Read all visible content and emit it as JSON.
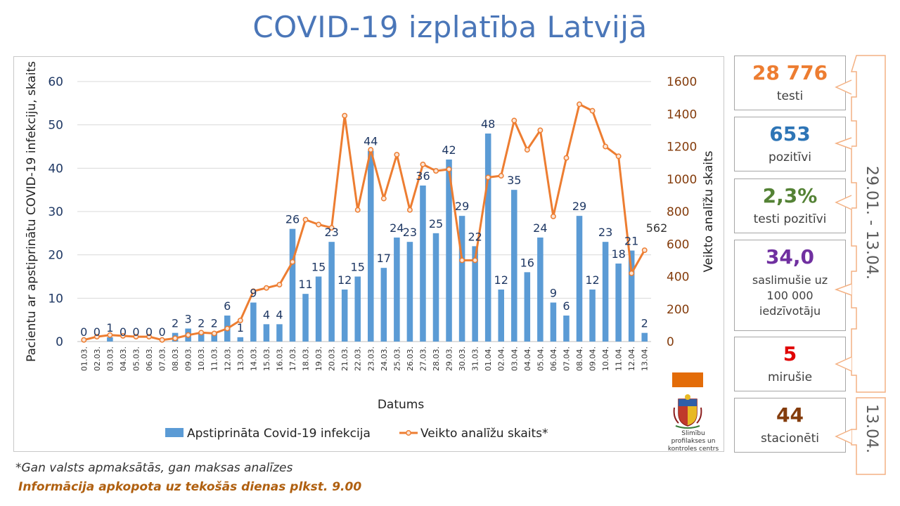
{
  "title": "COVID-19 izplatība Latvijā",
  "chart_data": {
    "type": "bar+line",
    "xlabel": "Datums",
    "ylabel_left": "Pacientu ar apstiprinātu COVID-19 infekciju, skaits",
    "ylabel_right": "Veikto analīžu skaits",
    "ylim_left": [
      0,
      60
    ],
    "yticks_left": [
      0,
      10,
      20,
      30,
      40,
      50,
      60
    ],
    "ylim_right": [
      0,
      1600
    ],
    "yticks_right": [
      0,
      200,
      400,
      600,
      800,
      1000,
      1200,
      1400,
      1600
    ],
    "grid": true,
    "legend_position": "bottom",
    "categories": [
      "01.03.",
      "02.03.",
      "03.03.",
      "04.03.",
      "05.03.",
      "06.03.",
      "07.03.",
      "08.03.",
      "09.03.",
      "10.03.",
      "11.03.",
      "12.03.",
      "13.03.",
      "14.03.",
      "15.03.",
      "16.03.",
      "17.03.",
      "18.03.",
      "19.03.",
      "20.03.",
      "21.03.",
      "22.03.",
      "23.03.",
      "24.03.",
      "25.03.",
      "26.03.",
      "27.03.",
      "28.03.",
      "29.03.",
      "30.03.",
      "31.03.",
      "01.04.",
      "02.04.",
      "03.04.",
      "04.04.",
      "05.04.",
      "06.04.",
      "07.04.",
      "08.04.",
      "09.04.",
      "10.04.",
      "11.04.",
      "12.04.",
      "13.04."
    ],
    "series": [
      {
        "name": "Apstiprināta Covid-19 infekcija",
        "type": "bar",
        "axis": "left",
        "color": "#5b9bd5",
        "values": [
          0,
          0,
          1,
          0,
          0,
          0,
          0,
          2,
          3,
          2,
          2,
          6,
          1,
          9,
          4,
          4,
          26,
          11,
          15,
          23,
          12,
          15,
          44,
          17,
          24,
          23,
          36,
          25,
          42,
          29,
          22,
          48,
          12,
          35,
          16,
          24,
          9,
          6,
          29,
          12,
          23,
          18,
          21,
          2
        ]
      },
      {
        "name": "Veikto analīžu skaits*",
        "type": "line",
        "axis": "right",
        "color": "#ed7d31",
        "values": [
          10,
          30,
          40,
          35,
          30,
          30,
          10,
          20,
          40,
          55,
          50,
          80,
          130,
          310,
          330,
          350,
          490,
          750,
          720,
          700,
          1390,
          810,
          1180,
          880,
          1150,
          810,
          1090,
          1050,
          1060,
          500,
          500,
          1010,
          1020,
          1360,
          1180,
          1300,
          770,
          1130,
          1460,
          1420,
          1200,
          1140,
          420,
          562
        ],
        "end_label": "562"
      }
    ]
  },
  "stats": [
    {
      "value": "28 776",
      "label": "testi",
      "color": "#ed7d31"
    },
    {
      "value": "653",
      "label": "pozitīvi",
      "color": "#2e75b6"
    },
    {
      "value": "2,3%",
      "label": "testi pozitīvi",
      "color": "#548235"
    },
    {
      "value": "34,0",
      "label": "saslimušie uz 100 000 iedzīvotāju",
      "color": "#7030a0"
    },
    {
      "value": "5",
      "label": "mirušie",
      "color": "#e00000"
    },
    {
      "value": "44",
      "label": "stacionēti",
      "color": "#843c0c"
    }
  ],
  "period_label": "29.01. - 13.04.",
  "date_label": "13.04.",
  "logo_caption": "Slimību profilakses un kontroles centrs",
  "footnote": "*Gan valsts apmaksātās, gan maksas analīzes",
  "info_note": "Informācija apkopota uz tekošās dienas plkst. 9.00"
}
